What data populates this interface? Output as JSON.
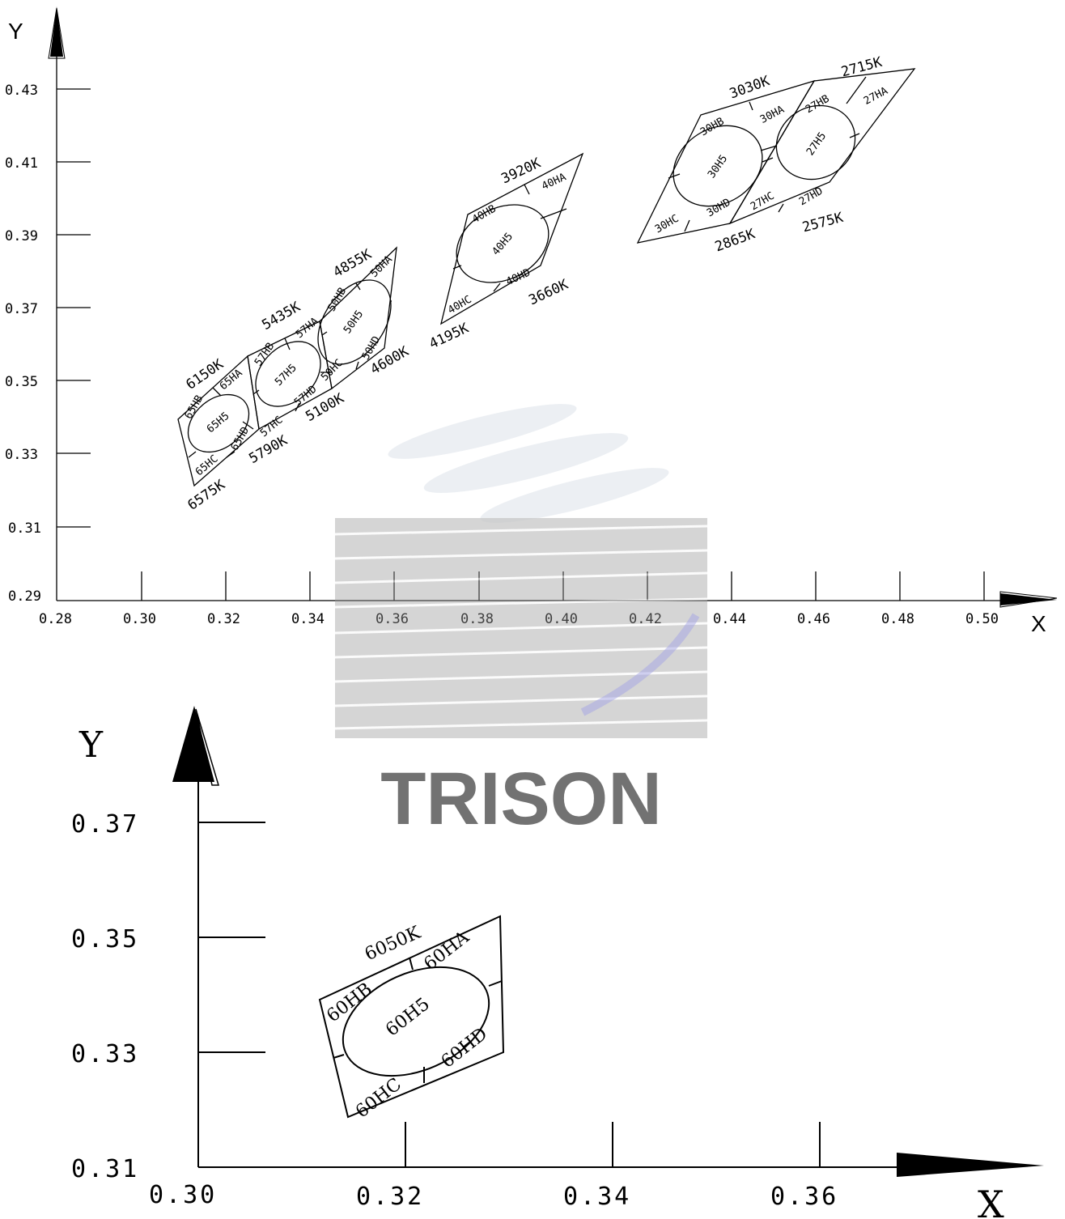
{
  "chart1": {
    "y_axis_label": "Y",
    "x_axis_label": "X",
    "y_ticks": [
      "0.43",
      "0.41",
      "0.39",
      "0.37",
      "0.35",
      "0.33",
      "0.31",
      "0.29"
    ],
    "x_ticks": [
      "0.28",
      "0.30",
      "0.32",
      "0.34",
      "0.36",
      "0.38",
      "0.40",
      "0.42",
      "0.44",
      "0.46",
      "0.48",
      "0.50"
    ],
    "bins": [
      {
        "center": "65H5",
        "a": "65HA",
        "b": "65HB",
        "c": "65HC",
        "d": "65HD",
        "cct_top": "6150K",
        "cct_bottom": "6575K"
      },
      {
        "center": "57H5",
        "a": "57HA",
        "b": "57HB",
        "c": "57HC",
        "d": "57HD",
        "cct_top": "5435K",
        "cct_bottom": "5790K",
        "cct_right": "5100K"
      },
      {
        "center": "50H5",
        "a": "50HA",
        "b": "50HB",
        "c": "50HC",
        "d": "50HD",
        "cct_top": "4855K",
        "cct_right": "4600K"
      },
      {
        "center": "40H5",
        "a": "40HA",
        "b": "40HB",
        "c": "40HC",
        "d": "40HD",
        "cct_top": "3920K",
        "cct_bottom": "4195K",
        "cct_right": "3660K"
      },
      {
        "center": "30H5",
        "a": "30HA",
        "b": "30HB",
        "c": "30HC",
        "d": "30HD",
        "cct_top": "3030K",
        "cct_bottom": "2865K"
      },
      {
        "center": "27H5",
        "a": "27HA",
        "b": "27HB",
        "c": "27HC",
        "d": "27HD",
        "cct_top": "2715K",
        "cct_bottom": "2575K"
      }
    ]
  },
  "chart2": {
    "y_axis_label": "Y",
    "x_axis_label": "X",
    "y_ticks": [
      "0.37",
      "0.35",
      "0.33",
      "0.31"
    ],
    "x_ticks": [
      "0.30",
      "0.32",
      "0.34",
      "0.36"
    ],
    "bin": {
      "center": "60H5",
      "a": "60HA",
      "b": "60HB",
      "c": "60HC",
      "d": "60HD",
      "cct_top": "6050K"
    }
  },
  "watermark": {
    "text": "TRISON"
  }
}
